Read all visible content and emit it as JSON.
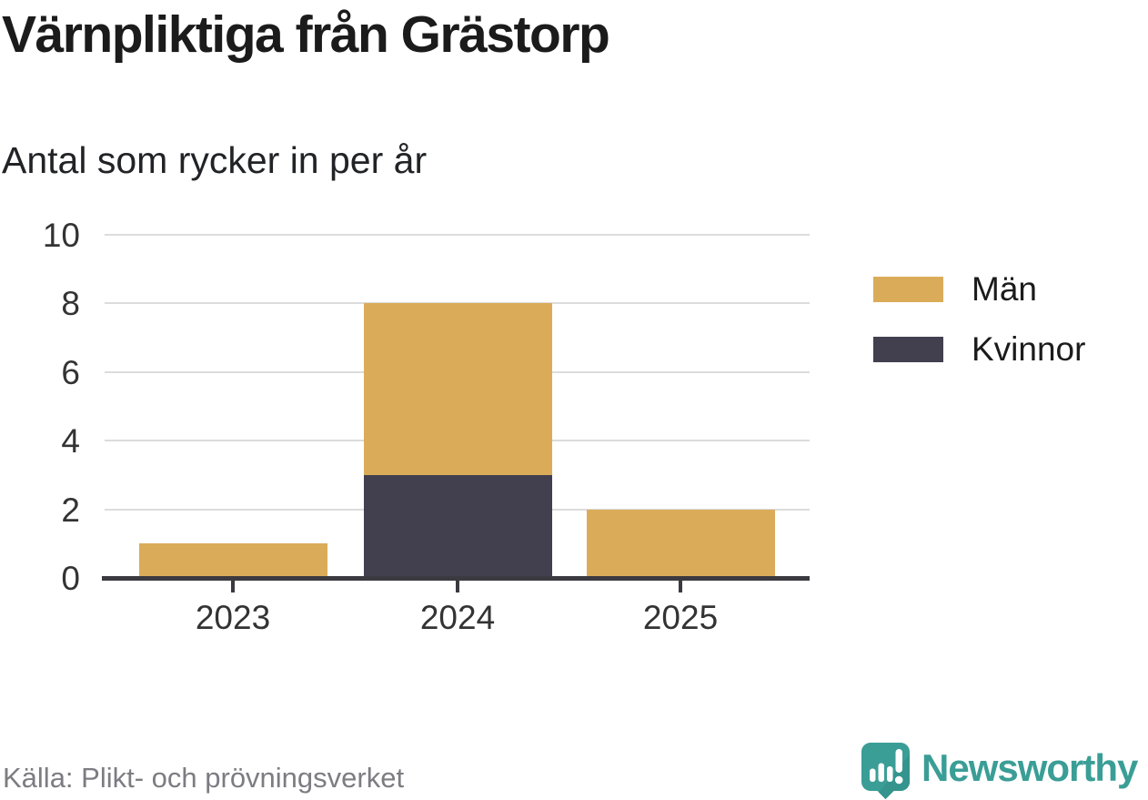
{
  "header": {
    "title": "Värnpliktiga från Grästorp",
    "subtitle": "Antal som rycker in per år"
  },
  "chart_data": {
    "type": "bar",
    "stacked": true,
    "title": "Värnpliktiga från Grästorp",
    "subtitle": "Antal som rycker in per år",
    "categories": [
      "2023",
      "2024",
      "2025"
    ],
    "series": [
      {
        "name": "Män",
        "color": "#DAAC5A",
        "values": [
          1,
          5,
          2
        ]
      },
      {
        "name": "Kvinnor",
        "color": "#42404F",
        "values": [
          0,
          3,
          0
        ]
      }
    ],
    "stack_order": [
      "Kvinnor",
      "Män"
    ],
    "totals": [
      1,
      8,
      2
    ],
    "xlabel": "",
    "ylabel": "",
    "ylim": [
      0,
      10
    ],
    "yticks": [
      0,
      2,
      4,
      6,
      8,
      10
    ],
    "grid": true,
    "legend_position": "right"
  },
  "colors": {
    "grid": "#dcdcdc",
    "axis": "#3b3a40",
    "tick_label": "#333333",
    "title_text": "#1b1b1b",
    "source_text": "#7c7c82",
    "brand_teal": "#3a9e96"
  },
  "footer": {
    "source": "Källa: Plikt- och prövningsverket",
    "brand": "Newsworthy"
  }
}
